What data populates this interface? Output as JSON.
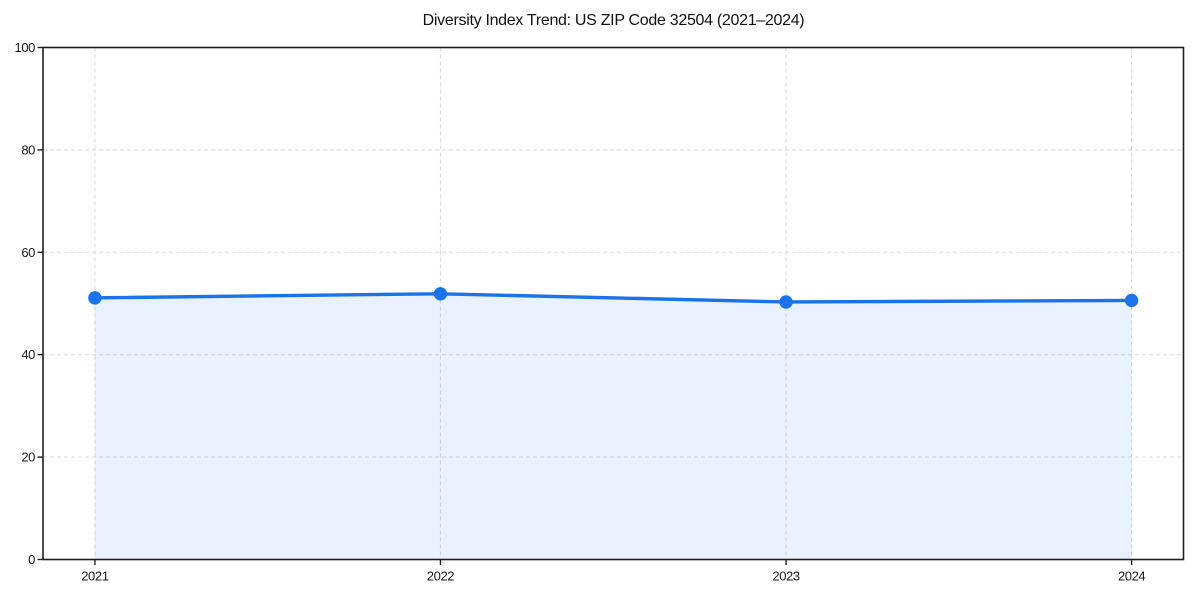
{
  "page": {
    "background_color": "#ffffff"
  },
  "chart_data": {
    "type": "area",
    "title": "Diversity Index Trend: US ZIP Code 32504 (2021–2024)",
    "categories": [
      "2021",
      "2022",
      "2023",
      "2024"
    ],
    "series": [
      {
        "name": "Diversity Index",
        "values": [
          51.1,
          51.9,
          50.3,
          50.6
        ]
      }
    ],
    "xlabel": "",
    "ylabel": "",
    "ylim": [
      0,
      100
    ],
    "yticks": [
      0,
      20,
      40,
      60,
      80,
      100
    ],
    "grid": "dashed gridlines on both axes",
    "legend_position": "none",
    "line_color": "#1a73e8",
    "fill_color": "#1a73e8",
    "fill_opacity": 0.1,
    "marker": "circle",
    "marker_radius": 6.7,
    "line_width": 3.4,
    "gridline_color": "#dcdcdc",
    "spine_color": "#1f1f1f",
    "tick_label_color": "#1a1a1a",
    "title_color": "#111111",
    "tick_font_size": 13
  }
}
